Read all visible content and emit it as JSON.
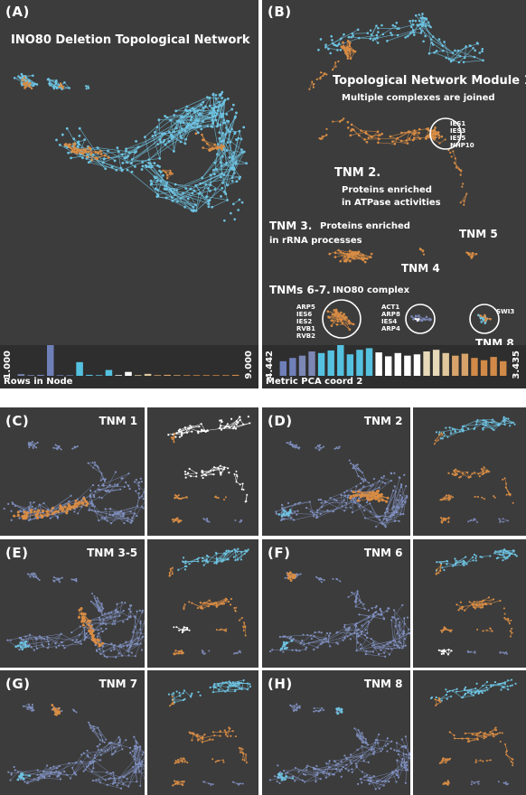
{
  "panelA": {
    "letter": "(A)",
    "title": "INO80 Deletion Topological Network",
    "hist_label": "Rows in Node",
    "hist_min": "1.000",
    "hist_max": "9.000",
    "hist_bars": [
      {
        "v": 0.05,
        "c": "#7c87b5"
      },
      {
        "v": 0.02,
        "c": "#7c87b5"
      },
      {
        "v": 0.03,
        "c": "#7c87b5"
      },
      {
        "v": 1.0,
        "c": "#6f7fb8"
      },
      {
        "v": 0.02,
        "c": "#6f7fb8"
      },
      {
        "v": 0.02,
        "c": "#6f7fb8"
      },
      {
        "v": 0.42,
        "c": "#55c1e0"
      },
      {
        "v": 0.03,
        "c": "#55c1e0"
      },
      {
        "v": 0.02,
        "c": "#55c1e0"
      },
      {
        "v": 0.18,
        "c": "#55c1e0"
      },
      {
        "v": 0.02,
        "c": "#ffffff"
      },
      {
        "v": 0.12,
        "c": "#ffffff"
      },
      {
        "v": 0.02,
        "c": "#e0c89c"
      },
      {
        "v": 0.06,
        "c": "#e0c89c"
      },
      {
        "v": 0.02,
        "c": "#d8a36a"
      },
      {
        "v": 0.03,
        "c": "#d8a36a"
      },
      {
        "v": 0.02,
        "c": "#d8a36a"
      },
      {
        "v": 0.02,
        "c": "#d18a48"
      },
      {
        "v": 0.02,
        "c": "#d18a48"
      },
      {
        "v": 0.02,
        "c": "#d18a48"
      },
      {
        "v": 0.02,
        "c": "#d18a48"
      },
      {
        "v": 0.02,
        "c": "#d18a48"
      },
      {
        "v": 0.03,
        "c": "#d18a48"
      }
    ]
  },
  "panelB": {
    "letter": "(B)",
    "tnm1_title": "Topological Network Module 1.",
    "tnm1_sub": "Multiple complexes are joined",
    "tnm1_genes": [
      "IES1",
      "IES3",
      "IES5",
      "NHP10"
    ],
    "tnm2_title": "TNM 2.",
    "tnm2_sub1": "Proteins enriched",
    "tnm2_sub2": "in ATPase  activities",
    "tnm3_title": "TNM 3.",
    "tnm3_sub1": "Proteins enriched",
    "tnm3_sub2": "in rRNA processes",
    "tnm4": "TNM 4",
    "tnm5": "TNM 5",
    "tnm67_title": "TNMs 6-7.",
    "tnm67_sub": "INO80 complex",
    "tnm6_genes": [
      "ARP5",
      "IES6",
      "IES2",
      "RVB1",
      "RVB2"
    ],
    "tnm7_genes": [
      "ACT1",
      "ARP8",
      "IES4",
      "ARP4"
    ],
    "tnm8_gene": "SWI3",
    "tnm8": "TNM 8",
    "hist_label": "Metric PCA coord 2",
    "hist_min": "-4.442",
    "hist_max": "3.435",
    "hist_bars": [
      {
        "v": 0.45,
        "c": "#6f7fb8"
      },
      {
        "v": 0.55,
        "c": "#6f7fb8"
      },
      {
        "v": 0.62,
        "c": "#7c87b5"
      },
      {
        "v": 0.75,
        "c": "#7c87b5"
      },
      {
        "v": 0.7,
        "c": "#55c1e0"
      },
      {
        "v": 0.78,
        "c": "#55c1e0"
      },
      {
        "v": 1.0,
        "c": "#55c1e0"
      },
      {
        "v": 0.66,
        "c": "#55c1e0"
      },
      {
        "v": 0.8,
        "c": "#55c1e0"
      },
      {
        "v": 0.85,
        "c": "#55c1e0"
      },
      {
        "v": 0.72,
        "c": "#ffffff"
      },
      {
        "v": 0.6,
        "c": "#ffffff"
      },
      {
        "v": 0.7,
        "c": "#ffffff"
      },
      {
        "v": 0.62,
        "c": "#ffffff"
      },
      {
        "v": 0.66,
        "c": "#ffffff"
      },
      {
        "v": 0.75,
        "c": "#e8d9b8"
      },
      {
        "v": 0.8,
        "c": "#e8d9b8"
      },
      {
        "v": 0.7,
        "c": "#e0c89c"
      },
      {
        "v": 0.62,
        "c": "#d8a36a"
      },
      {
        "v": 0.68,
        "c": "#d8a36a"
      },
      {
        "v": 0.55,
        "c": "#d18a48"
      },
      {
        "v": 0.48,
        "c": "#d18a48"
      },
      {
        "v": 0.58,
        "c": "#d18a48"
      },
      {
        "v": 0.45,
        "c": "#d18a48"
      }
    ]
  },
  "small_panels": [
    {
      "letter": "(C)",
      "label": "TNM 1"
    },
    {
      "letter": "(D)",
      "label": "TNM 2"
    },
    {
      "letter": "(E)",
      "label": "TNM 3-5"
    },
    {
      "letter": "(F)",
      "label": "TNM 6"
    },
    {
      "letter": "(G)",
      "label": "TNM 7"
    },
    {
      "letter": "(H)",
      "label": "TNM 8"
    }
  ],
  "colors": {
    "panel_bg": "#3c3c3c",
    "blue": "#6ec3e2",
    "orange": "#d98d45",
    "periwinkle": "#7c87b5",
    "white": "#ffffff"
  }
}
